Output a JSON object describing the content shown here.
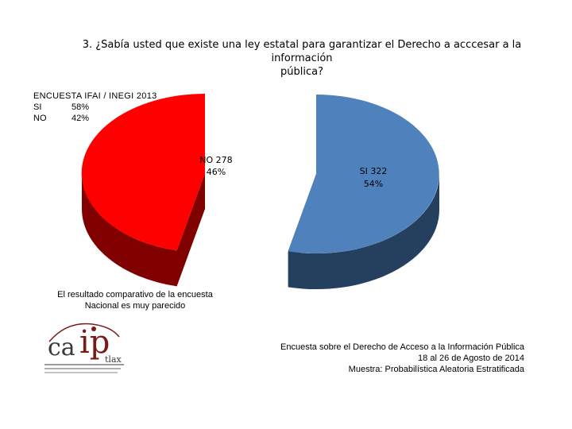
{
  "chart_data": {
    "type": "pie",
    "title_line1": "3. ¿Sabía usted que existe una ley estatal para garantizar el Derecho a acccesar a la información",
    "title_line2": "pública?",
    "slices": [
      {
        "label_line1": "NO 278",
        "label_line2": "46%",
        "value": 278,
        "percent": 46,
        "color": "#ff0000",
        "side_color": "#800000"
      },
      {
        "label_line1": "SI 322",
        "label_line2": "54%",
        "value": 322,
        "percent": 54,
        "color": "#4f81bd",
        "side_color": "#253f5e"
      }
    ]
  },
  "reference": {
    "heading": "ENCUESTA IFAI / INEGI 2013",
    "rows": [
      {
        "label": "SI",
        "value": "58%"
      },
      {
        "label": "NO",
        "value": "42%"
      }
    ]
  },
  "note": {
    "line1": "El resultado comparativo de la encuesta",
    "line2": "Nacional es muy parecido"
  },
  "footer": {
    "line1": "Encuesta sobre el Derecho de Acceso a la Información Pública",
    "line2": "18 al 26 de Agosto de 2014",
    "line3": "Muestra: Probabilística Aleatoria Estratificada"
  },
  "logo": {
    "part1": "ca",
    "part2": "ip",
    "part3": "tlax"
  }
}
